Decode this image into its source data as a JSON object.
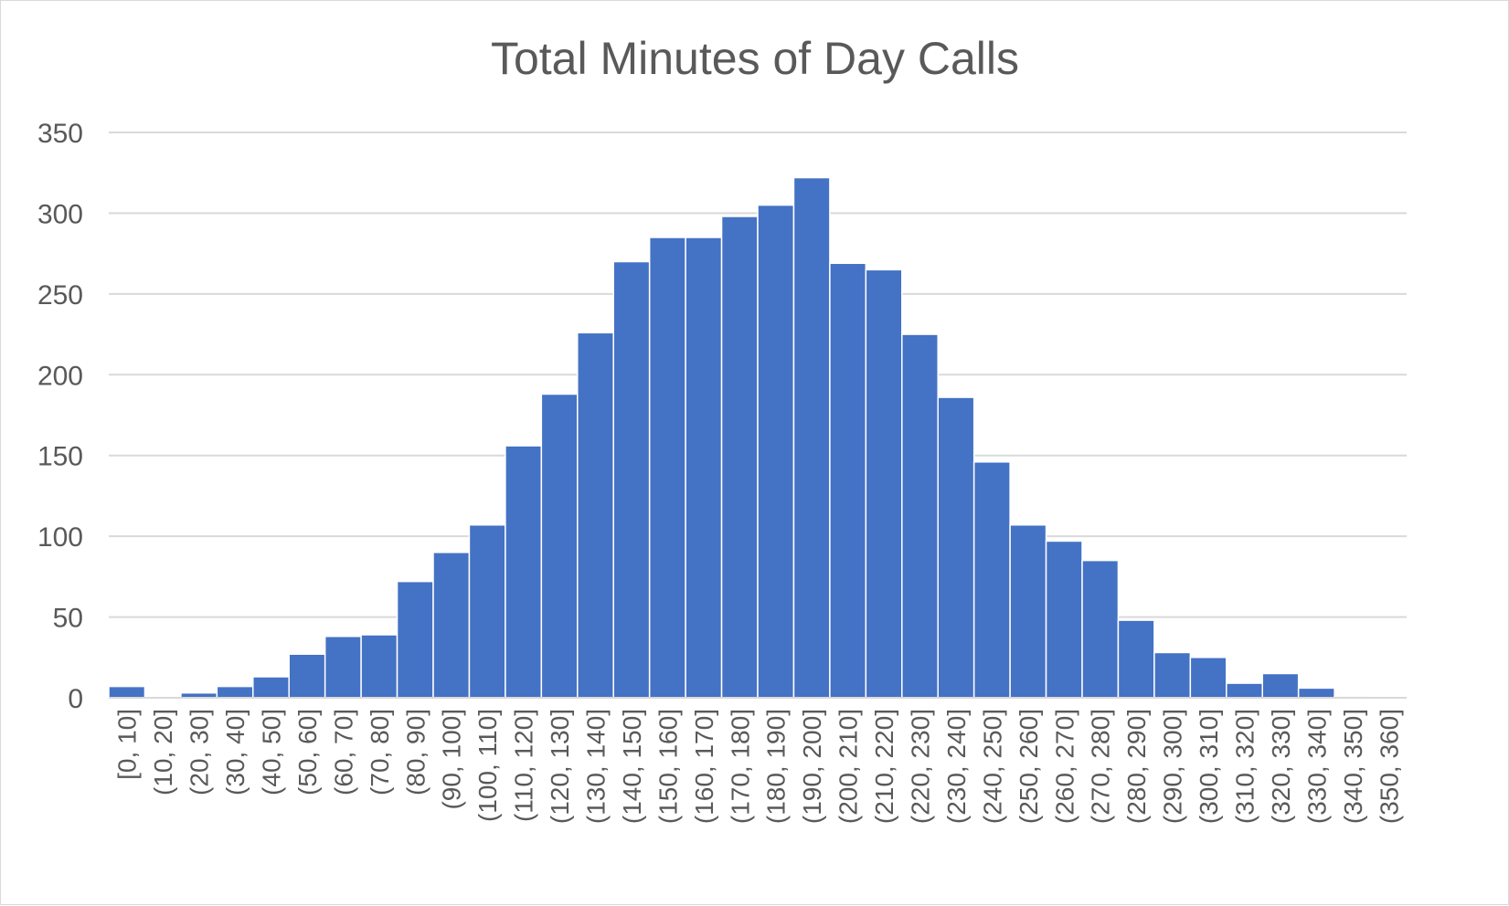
{
  "chart_data": {
    "type": "bar",
    "title": "Total Minutes of Day Calls",
    "xlabel": "",
    "ylabel": "",
    "ylim": [
      0,
      350
    ],
    "yticks": [
      0,
      50,
      100,
      150,
      200,
      250,
      300,
      350
    ],
    "grid": true,
    "bar_color": "#4472C4",
    "categories": [
      "[0, 10]",
      "(10, 20]",
      "(20, 30]",
      "(30, 40]",
      "(40, 50]",
      "(50, 60]",
      "(60, 70]",
      "(70, 80]",
      "(80, 90]",
      "(90, 100]",
      "(100, 110]",
      "(110, 120]",
      "(120, 130]",
      "(130, 140]",
      "(140, 150]",
      "(150, 160]",
      "(160, 170]",
      "(170, 180]",
      "(180, 190]",
      "(190, 200]",
      "(200, 210]",
      "(210, 220]",
      "(220, 230]",
      "(230, 240]",
      "(240, 250]",
      "(250, 260]",
      "(260, 270]",
      "(270, 280]",
      "(280, 290]",
      "(290, 300]",
      "(300, 310]",
      "(310, 320]",
      "(320, 330]",
      "(330, 340]",
      "(340, 350]",
      "(350, 360]"
    ],
    "values": [
      7,
      0,
      3,
      7,
      13,
      27,
      38,
      39,
      72,
      90,
      107,
      156,
      188,
      226,
      270,
      285,
      285,
      298,
      305,
      322,
      269,
      265,
      225,
      186,
      146,
      107,
      97,
      85,
      48,
      28,
      25,
      9,
      15,
      6,
      1,
      0
    ]
  }
}
